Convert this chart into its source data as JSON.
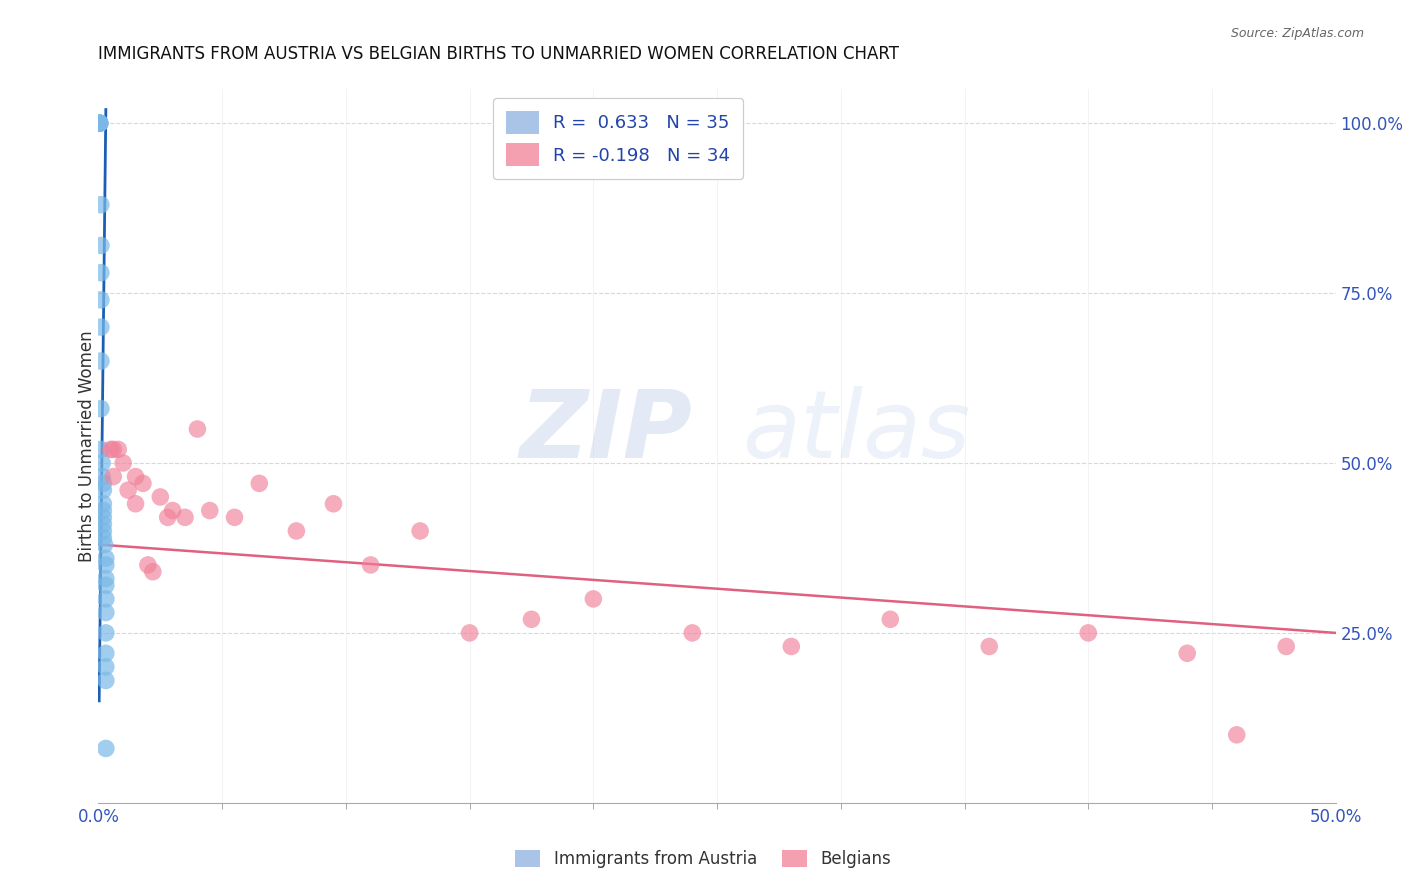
{
  "title": "IMMIGRANTS FROM AUSTRIA VS BELGIAN BIRTHS TO UNMARRIED WOMEN CORRELATION CHART",
  "source": "Source: ZipAtlas.com",
  "ylabel": "Births to Unmarried Women",
  "right_yticks": [
    "100.0%",
    "75.0%",
    "50.0%",
    "25.0%"
  ],
  "right_ytick_vals": [
    1.0,
    0.75,
    0.5,
    0.25
  ],
  "legend_entries": [
    {
      "label": "R =  0.633   N = 35",
      "color": "#aac4e8"
    },
    {
      "label": "R = -0.198   N = 34",
      "color": "#f5a0b0"
    }
  ],
  "legend_bottom": [
    "Immigrants from Austria",
    "Belgians"
  ],
  "blue_scatter_x": [
    0.0005,
    0.0005,
    0.0005,
    0.0005,
    0.0005,
    0.001,
    0.001,
    0.001,
    0.001,
    0.001,
    0.001,
    0.001,
    0.001,
    0.0015,
    0.0015,
    0.002,
    0.002,
    0.002,
    0.002,
    0.002,
    0.002,
    0.002,
    0.002,
    0.0025,
    0.003,
    0.003,
    0.003,
    0.003,
    0.003,
    0.003,
    0.003,
    0.003,
    0.003,
    0.003,
    0.003
  ],
  "blue_scatter_y": [
    1.0,
    1.0,
    1.0,
    1.0,
    1.0,
    0.88,
    0.82,
    0.78,
    0.74,
    0.7,
    0.65,
    0.58,
    0.52,
    0.5,
    0.48,
    0.47,
    0.46,
    0.44,
    0.43,
    0.42,
    0.41,
    0.4,
    0.39,
    0.38,
    0.36,
    0.35,
    0.33,
    0.32,
    0.3,
    0.28,
    0.25,
    0.22,
    0.2,
    0.18,
    0.08
  ],
  "pink_scatter_x": [
    0.005,
    0.006,
    0.006,
    0.008,
    0.01,
    0.012,
    0.015,
    0.015,
    0.018,
    0.02,
    0.022,
    0.025,
    0.028,
    0.03,
    0.035,
    0.04,
    0.045,
    0.055,
    0.065,
    0.08,
    0.095,
    0.11,
    0.13,
    0.15,
    0.175,
    0.2,
    0.24,
    0.28,
    0.32,
    0.36,
    0.4,
    0.44,
    0.46,
    0.48
  ],
  "pink_scatter_y": [
    0.52,
    0.52,
    0.48,
    0.52,
    0.5,
    0.46,
    0.48,
    0.44,
    0.47,
    0.35,
    0.34,
    0.45,
    0.42,
    0.43,
    0.42,
    0.55,
    0.43,
    0.42,
    0.47,
    0.4,
    0.44,
    0.35,
    0.4,
    0.25,
    0.27,
    0.3,
    0.25,
    0.23,
    0.27,
    0.23,
    0.25,
    0.22,
    0.1,
    0.23
  ],
  "blue_line_x": [
    0.0003,
    0.003
  ],
  "blue_line_y": [
    0.15,
    1.02
  ],
  "pink_line_x": [
    0.0,
    0.5
  ],
  "pink_line_y": [
    0.38,
    0.25
  ],
  "blue_color": "#7ab8e8",
  "pink_color": "#f08098",
  "blue_line_color": "#1a5fb4",
  "pink_line_color": "#e06080",
  "watermark_zip": "ZIP",
  "watermark_atlas": "atlas",
  "xmin": 0.0,
  "xmax": 0.5,
  "ymin": 0.0,
  "ymax": 1.05,
  "background_color": "#ffffff",
  "grid_color": "#d8d8d8"
}
